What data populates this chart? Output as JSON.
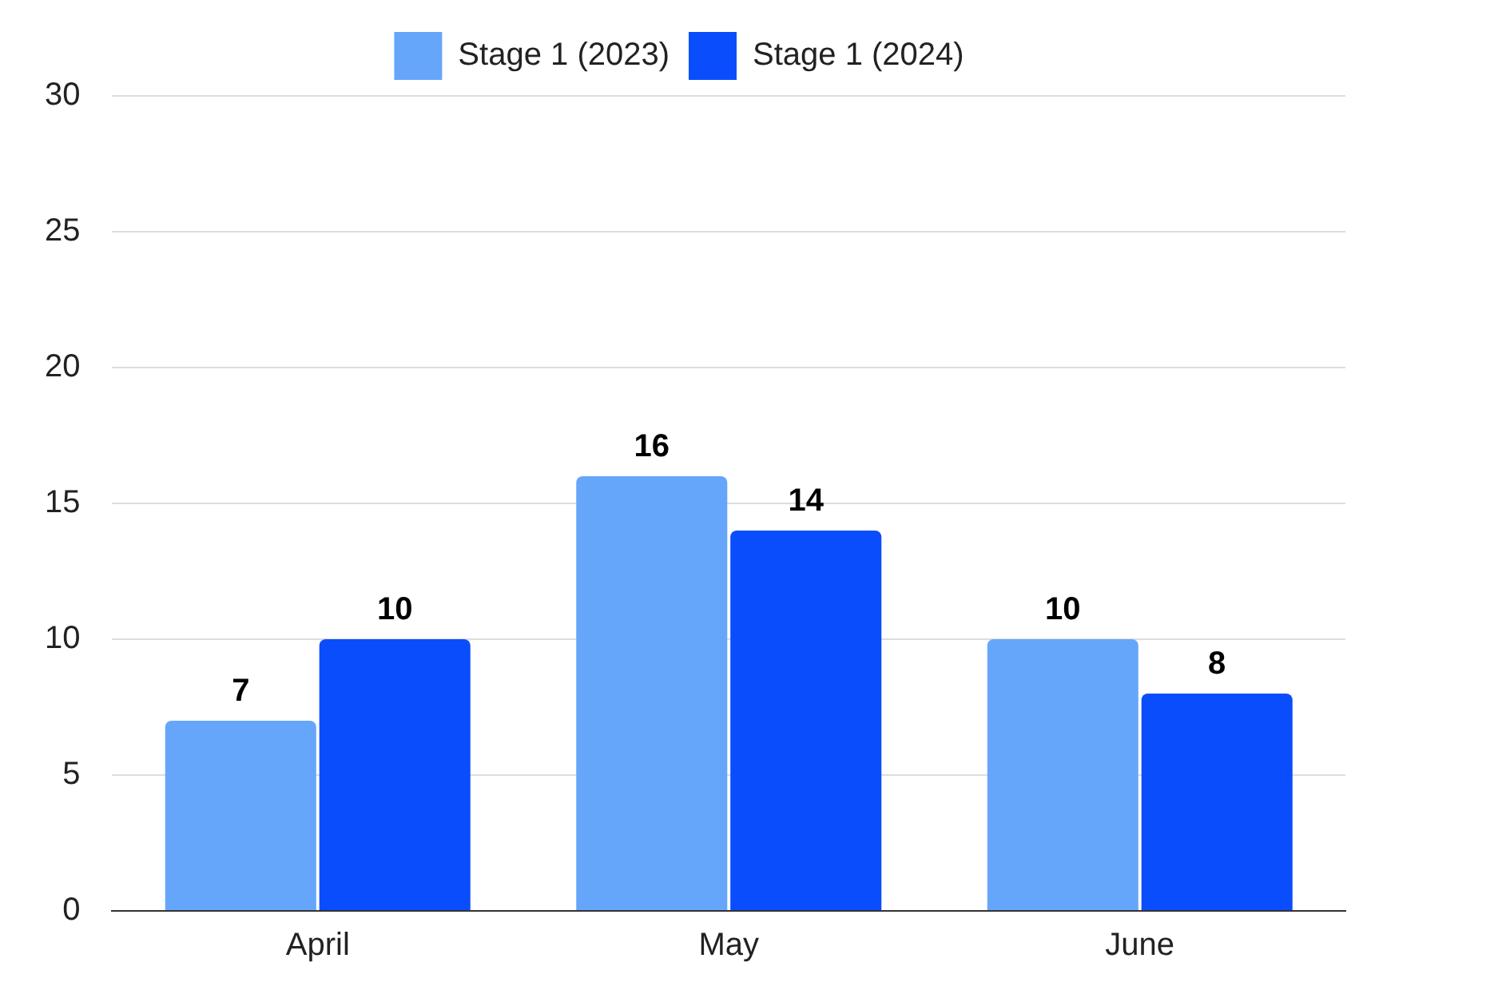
{
  "chart_data": {
    "type": "bar",
    "categories": [
      "April",
      "May",
      "June"
    ],
    "series": [
      {
        "name": "Stage 1 (2023)",
        "color": "#66a6fa",
        "values": [
          7,
          16,
          10
        ]
      },
      {
        "name": "Stage 1 (2024)",
        "color": "#0a4dfc",
        "values": [
          10,
          14,
          8
        ]
      }
    ],
    "ylim": [
      0,
      30
    ],
    "yticks": [
      0,
      5,
      10,
      15,
      20,
      25,
      30
    ],
    "grid": "y",
    "legend": "top",
    "data_labels": true
  }
}
